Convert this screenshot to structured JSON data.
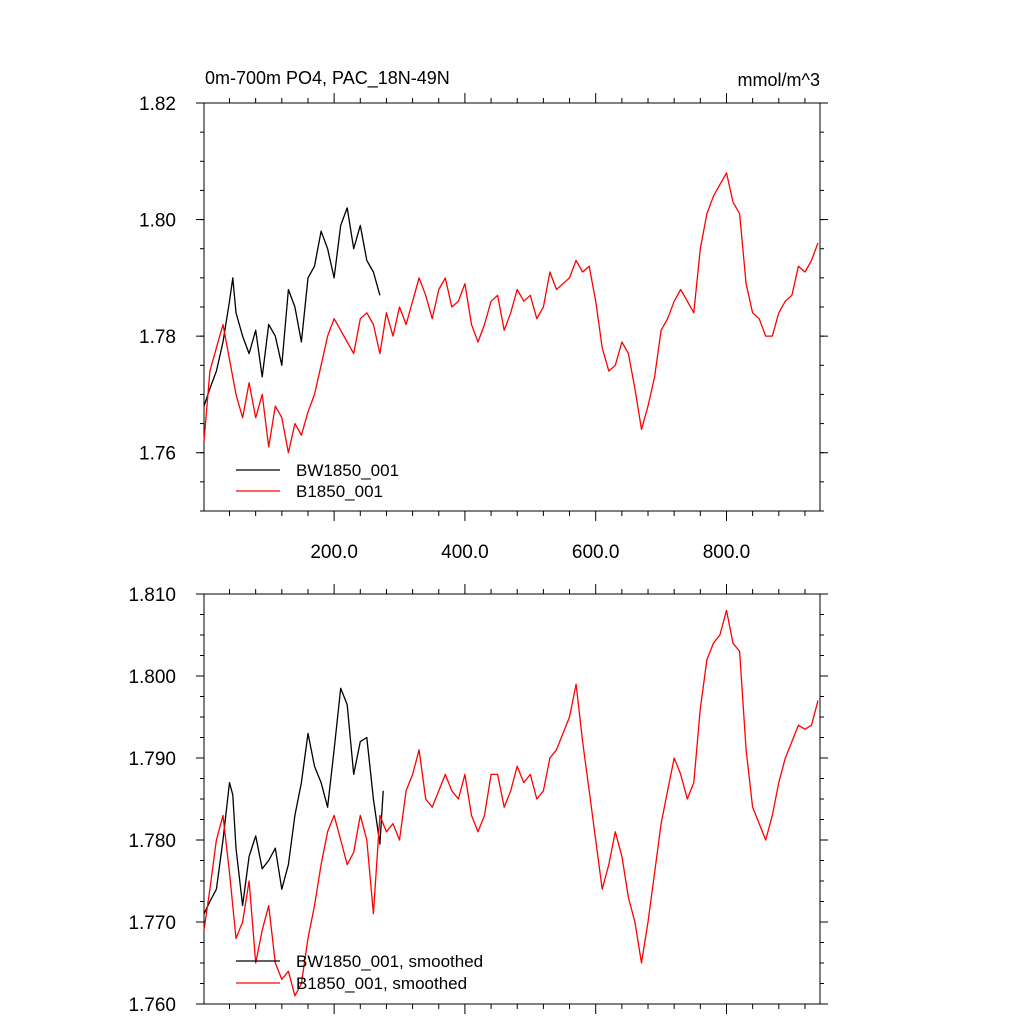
{
  "chart_data": [
    {
      "type": "line",
      "title": "0m-700m PO4, PAC_18N-49N",
      "units": "mmol/m^3",
      "xlim": [
        1,
        943
      ],
      "ylim": [
        1.75,
        1.82
      ],
      "xticks": [
        200,
        400,
        600,
        800
      ],
      "xtick_labels": [
        "200.0",
        "400.0",
        "600.0",
        "800.0"
      ],
      "yticks": [
        1.76,
        1.78,
        1.8,
        1.82
      ],
      "ytick_labels": [
        "1.76",
        "1.78",
        "1.80",
        "1.82"
      ],
      "legend_placement": "bottom-left",
      "series": [
        {
          "name": "BW1850_001",
          "color": "#000000",
          "x": [
            1,
            10,
            20,
            30,
            40,
            45,
            50,
            60,
            70,
            80,
            90,
            100,
            110,
            120,
            130,
            140,
            150,
            160,
            170,
            180,
            190,
            200,
            210,
            220,
            230,
            240,
            250,
            260,
            270
          ],
          "y": [
            1.768,
            1.771,
            1.774,
            1.779,
            1.786,
            1.79,
            1.784,
            1.78,
            1.777,
            1.781,
            1.773,
            1.782,
            1.78,
            1.775,
            1.788,
            1.785,
            1.779,
            1.79,
            1.792,
            1.798,
            1.795,
            1.79,
            1.799,
            1.802,
            1.795,
            1.799,
            1.793,
            1.791,
            1.787
          ]
        },
        {
          "name": "B1850_001",
          "color": "#ff0000",
          "x": [
            1,
            10,
            20,
            30,
            40,
            50,
            60,
            70,
            80,
            90,
            100,
            110,
            120,
            130,
            140,
            150,
            160,
            170,
            180,
            190,
            200,
            210,
            220,
            230,
            240,
            250,
            260,
            270,
            280,
            290,
            300,
            310,
            320,
            330,
            340,
            350,
            360,
            370,
            380,
            390,
            400,
            410,
            420,
            430,
            440,
            450,
            460,
            470,
            480,
            490,
            500,
            510,
            520,
            530,
            540,
            550,
            560,
            570,
            580,
            590,
            600,
            610,
            620,
            630,
            640,
            650,
            660,
            670,
            680,
            690,
            700,
            710,
            720,
            730,
            740,
            750,
            760,
            770,
            780,
            790,
            800,
            810,
            820,
            830,
            840,
            850,
            860,
            870,
            880,
            890,
            900,
            910,
            920,
            930,
            940
          ],
          "y": [
            1.762,
            1.774,
            1.778,
            1.782,
            1.776,
            1.77,
            1.766,
            1.772,
            1.766,
            1.77,
            1.761,
            1.768,
            1.766,
            1.76,
            1.765,
            1.763,
            1.767,
            1.77,
            1.775,
            1.78,
            1.783,
            1.781,
            1.779,
            1.777,
            1.783,
            1.784,
            1.782,
            1.777,
            1.784,
            1.78,
            1.785,
            1.782,
            1.786,
            1.79,
            1.787,
            1.783,
            1.788,
            1.79,
            1.785,
            1.786,
            1.789,
            1.782,
            1.779,
            1.782,
            1.786,
            1.787,
            1.781,
            1.784,
            1.788,
            1.786,
            1.787,
            1.783,
            1.785,
            1.791,
            1.788,
            1.789,
            1.79,
            1.793,
            1.791,
            1.792,
            1.786,
            1.778,
            1.774,
            1.775,
            1.779,
            1.777,
            1.771,
            1.764,
            1.768,
            1.773,
            1.781,
            1.783,
            1.786,
            1.788,
            1.786,
            1.784,
            1.795,
            1.801,
            1.804,
            1.806,
            1.808,
            1.803,
            1.801,
            1.789,
            1.784,
            1.783,
            1.78,
            1.78,
            1.784,
            1.786,
            1.787,
            1.792,
            1.791,
            1.793,
            1.796
          ]
        }
      ]
    },
    {
      "type": "line",
      "xlim": [
        1,
        943
      ],
      "ylim": [
        1.76,
        1.81
      ],
      "yticks": [
        1.76,
        1.77,
        1.78,
        1.79,
        1.8,
        1.81
      ],
      "ytick_labels": [
        "1.760",
        "1.770",
        "1.780",
        "1.790",
        "1.800",
        "1.810"
      ],
      "legend_placement": "bottom-left",
      "series": [
        {
          "name": "BW1850_001, smoothed",
          "color": "#000000",
          "x": [
            1,
            10,
            20,
            30,
            40,
            45,
            50,
            60,
            70,
            80,
            90,
            100,
            110,
            120,
            130,
            140,
            150,
            160,
            170,
            180,
            190,
            200,
            210,
            220,
            230,
            240,
            250,
            260,
            270,
            275
          ],
          "y": [
            1.771,
            1.7725,
            1.774,
            1.78,
            1.787,
            1.7855,
            1.779,
            1.772,
            1.778,
            1.7805,
            1.7765,
            1.7775,
            1.779,
            1.774,
            1.777,
            1.783,
            1.787,
            1.793,
            1.789,
            1.787,
            1.784,
            1.791,
            1.7985,
            1.7965,
            1.788,
            1.792,
            1.7925,
            1.785,
            1.7795,
            1.786
          ]
        },
        {
          "name": "B1850_001, smoothed",
          "color": "#ff0000",
          "x": [
            1,
            10,
            20,
            30,
            40,
            50,
            60,
            70,
            80,
            90,
            100,
            110,
            120,
            130,
            140,
            150,
            160,
            170,
            180,
            190,
            200,
            210,
            220,
            230,
            240,
            250,
            260,
            270,
            280,
            290,
            300,
            310,
            320,
            330,
            340,
            350,
            360,
            370,
            380,
            390,
            400,
            410,
            420,
            430,
            440,
            450,
            460,
            470,
            480,
            490,
            500,
            510,
            520,
            530,
            540,
            550,
            560,
            570,
            580,
            590,
            600,
            610,
            620,
            630,
            640,
            650,
            660,
            670,
            680,
            690,
            700,
            710,
            720,
            730,
            740,
            750,
            760,
            770,
            780,
            790,
            800,
            810,
            820,
            830,
            840,
            850,
            860,
            870,
            880,
            890,
            900,
            910,
            920,
            930,
            940
          ],
          "y": [
            1.769,
            1.774,
            1.78,
            1.783,
            1.776,
            1.768,
            1.77,
            1.775,
            1.765,
            1.769,
            1.772,
            1.765,
            1.763,
            1.764,
            1.761,
            1.7625,
            1.768,
            1.772,
            1.777,
            1.781,
            1.783,
            1.78,
            1.777,
            1.7785,
            1.783,
            1.78,
            1.771,
            1.783,
            1.781,
            1.782,
            1.78,
            1.786,
            1.788,
            1.791,
            1.785,
            1.784,
            1.786,
            1.788,
            1.786,
            1.785,
            1.788,
            1.783,
            1.781,
            1.783,
            1.788,
            1.788,
            1.784,
            1.786,
            1.789,
            1.787,
            1.788,
            1.785,
            1.786,
            1.79,
            1.791,
            1.793,
            1.795,
            1.799,
            1.792,
            1.786,
            1.78,
            1.774,
            1.777,
            1.781,
            1.778,
            1.773,
            1.77,
            1.765,
            1.77,
            1.776,
            1.782,
            1.786,
            1.79,
            1.788,
            1.785,
            1.787,
            1.796,
            1.802,
            1.804,
            1.805,
            1.808,
            1.804,
            1.803,
            1.791,
            1.784,
            1.782,
            1.78,
            1.783,
            1.787,
            1.79,
            1.792,
            1.794,
            1.7935,
            1.794,
            1.797
          ]
        }
      ]
    }
  ]
}
